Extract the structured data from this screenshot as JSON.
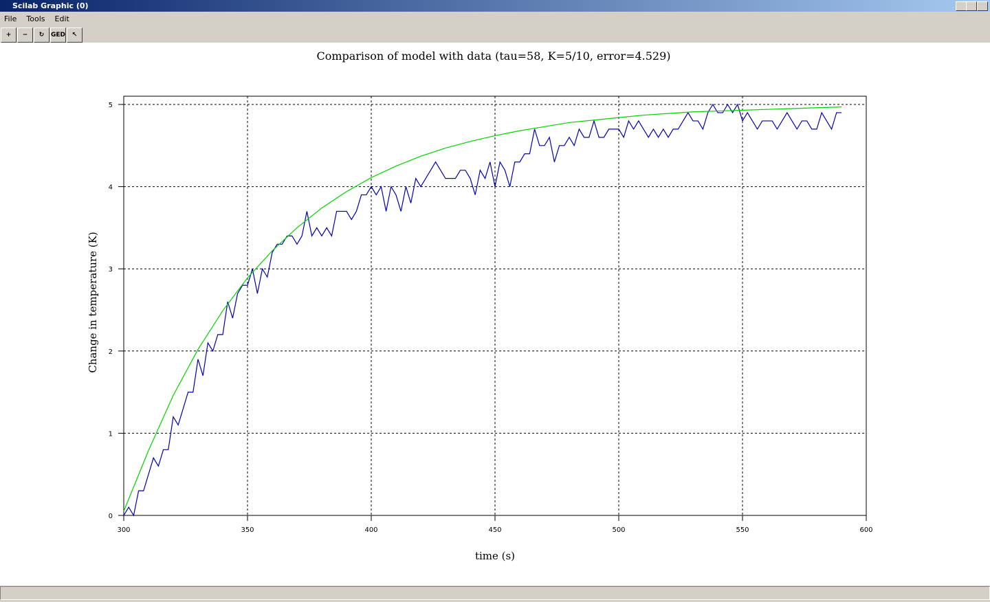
{
  "window": {
    "title": "Scilab Graphic (0)",
    "menu": [
      "File",
      "Tools",
      "Edit"
    ],
    "toolbar": [
      "GED"
    ]
  },
  "chart_data": {
    "type": "line",
    "title": "Comparison of model with data (tau=58, K=5/10, error=4.529)",
    "x_label": "time (s)",
    "y_label": "Change in temperature (K)",
    "xlim": [
      300,
      600
    ],
    "xticks": [
      300,
      350,
      400,
      450,
      500,
      550,
      600
    ],
    "ylim": [
      0,
      5
    ],
    "yticks": [
      0,
      1,
      2,
      3,
      4,
      5
    ],
    "grid": true,
    "series": [
      {
        "color": "#0000b4",
        "x": [
          300,
          302,
          304,
          306,
          308,
          310,
          312,
          314,
          316,
          318,
          320,
          322,
          324,
          326,
          328,
          330,
          332,
          334,
          336,
          338,
          340,
          342,
          344,
          346,
          348,
          350,
          352,
          354,
          356,
          358,
          360,
          362,
          364,
          366,
          368,
          370,
          372,
          374,
          376,
          378,
          380,
          382,
          384,
          386,
          388,
          390,
          392,
          394,
          396,
          398,
          400,
          402,
          404,
          406,
          408,
          410,
          412,
          414,
          416,
          418,
          420,
          422,
          424,
          426,
          428,
          430,
          432,
          434,
          436,
          438,
          440,
          442,
          444,
          446,
          448,
          450,
          452,
          454,
          456,
          458,
          460,
          462,
          464,
          466,
          468,
          470,
          472,
          474,
          476,
          478,
          480,
          482,
          484,
          486,
          488,
          490,
          492,
          494,
          496,
          498,
          500,
          502,
          504,
          506,
          508,
          510,
          512,
          514,
          516,
          518,
          520,
          522,
          524,
          526,
          528,
          530,
          532,
          534,
          536,
          538,
          540,
          542,
          544,
          546,
          548,
          550,
          552,
          554,
          556,
          558,
          560,
          562,
          564,
          566,
          568,
          570,
          572,
          574,
          576,
          578,
          580,
          582,
          584,
          586,
          588,
          590
        ],
        "values": [
          0.0,
          0.1,
          0.0,
          0.3,
          0.3,
          0.5,
          0.7,
          0.6,
          0.8,
          0.8,
          1.2,
          1.1,
          1.3,
          1.5,
          1.5,
          1.9,
          1.7,
          2.1,
          2.0,
          2.2,
          2.2,
          2.6,
          2.4,
          2.7,
          2.8,
          2.8,
          3.0,
          2.7,
          3.0,
          2.9,
          3.2,
          3.3,
          3.3,
          3.4,
          3.4,
          3.3,
          3.4,
          3.7,
          3.4,
          3.5,
          3.4,
          3.5,
          3.4,
          3.7,
          3.7,
          3.7,
          3.6,
          3.7,
          3.9,
          3.9,
          4.0,
          3.9,
          4.0,
          3.7,
          4.0,
          3.9,
          3.7,
          4.0,
          3.8,
          4.1,
          4.0,
          4.1,
          4.2,
          4.3,
          4.2,
          4.1,
          4.1,
          4.1,
          4.2,
          4.2,
          4.1,
          3.9,
          4.2,
          4.1,
          4.3,
          4.0,
          4.3,
          4.2,
          4.0,
          4.3,
          4.3,
          4.4,
          4.4,
          4.7,
          4.5,
          4.5,
          4.6,
          4.3,
          4.5,
          4.5,
          4.6,
          4.5,
          4.7,
          4.6,
          4.6,
          4.8,
          4.6,
          4.6,
          4.7,
          4.7,
          4.7,
          4.6,
          4.8,
          4.7,
          4.8,
          4.7,
          4.6,
          4.7,
          4.6,
          4.7,
          4.6,
          4.7,
          4.7,
          4.8,
          4.9,
          4.8,
          4.8,
          4.7,
          4.9,
          5.0,
          4.9,
          4.9,
          5.0,
          4.9,
          5.0,
          4.8,
          4.9,
          4.8,
          4.7,
          4.8,
          4.8,
          4.8,
          4.7,
          4.8,
          4.9,
          4.8,
          4.7,
          4.8,
          4.8,
          4.7,
          4.7,
          4.9,
          4.8,
          4.7,
          4.9,
          4.9
        ]
      },
      {
        "color": "#00d200",
        "x": [
          300,
          310,
          320,
          330,
          340,
          350,
          360,
          370,
          380,
          390,
          400,
          410,
          420,
          430,
          440,
          450,
          460,
          470,
          480,
          490,
          500,
          510,
          520,
          530,
          540,
          550,
          560,
          570,
          580,
          590
        ],
        "values": [
          0.05,
          0.79,
          1.46,
          2.02,
          2.49,
          2.89,
          3.22,
          3.5,
          3.74,
          3.94,
          4.11,
          4.25,
          4.37,
          4.47,
          4.55,
          4.62,
          4.68,
          4.73,
          4.78,
          4.81,
          4.84,
          4.87,
          4.89,
          4.91,
          4.92,
          4.93,
          4.94,
          4.95,
          4.96,
          4.97
        ]
      }
    ]
  }
}
